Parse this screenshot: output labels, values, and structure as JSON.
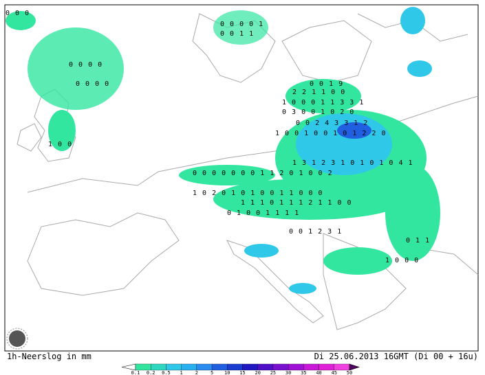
{
  "footer": {
    "left": "1h-Neerslog in mm",
    "right": "Di 25.06.2013 16GMT (Di 00 + 16u)"
  },
  "legend": {
    "labels": [
      0.1,
      0.2,
      0.5,
      1,
      2,
      5,
      10,
      15,
      20,
      25,
      30,
      35,
      40,
      45,
      50
    ],
    "colors": [
      "#33e6a0",
      "#2ed8c0",
      "#30c8e8",
      "#28b0f0",
      "#2a8cf0",
      "#2060e0",
      "#1a3cd0",
      "#2018c0",
      "#5010c8",
      "#7a10d0",
      "#a010d8",
      "#c818d8",
      "#e020d8",
      "#f040e0"
    ],
    "low_color": "#ffffff",
    "high_color": "#500060"
  },
  "map_values": [
    "0 0 0",
    "0 0 0 0 1",
    "0 0 1 1",
    "0 0 0 0",
    "0 0 0 0",
    "1 0 0",
    "0 0 1 9",
    "2 2 1 1 0 0",
    "1 0 0 0 1 1 3 3 1",
    "0 3 0 0 1 0 2 0",
    "0 0 2 4 3 3 1 2",
    "1 0 0 1 0 0 1 0 1 2 2 0",
    "1 3 1 2 3 1 0 1 0 1 0 4 1",
    "0 0 0 0 0 0 0 1 1 2 0 1 0 0 2",
    "1 0 2 0 1 0 1 0 0 1 1 0 0 0",
    "1 1 1 0 1 1 1 2 1 1 0 0",
    "0 1 0 0 1 1 1 1",
    "0 0 1 2 3 1",
    "1 0 0 0",
    "0 1 1"
  ]
}
